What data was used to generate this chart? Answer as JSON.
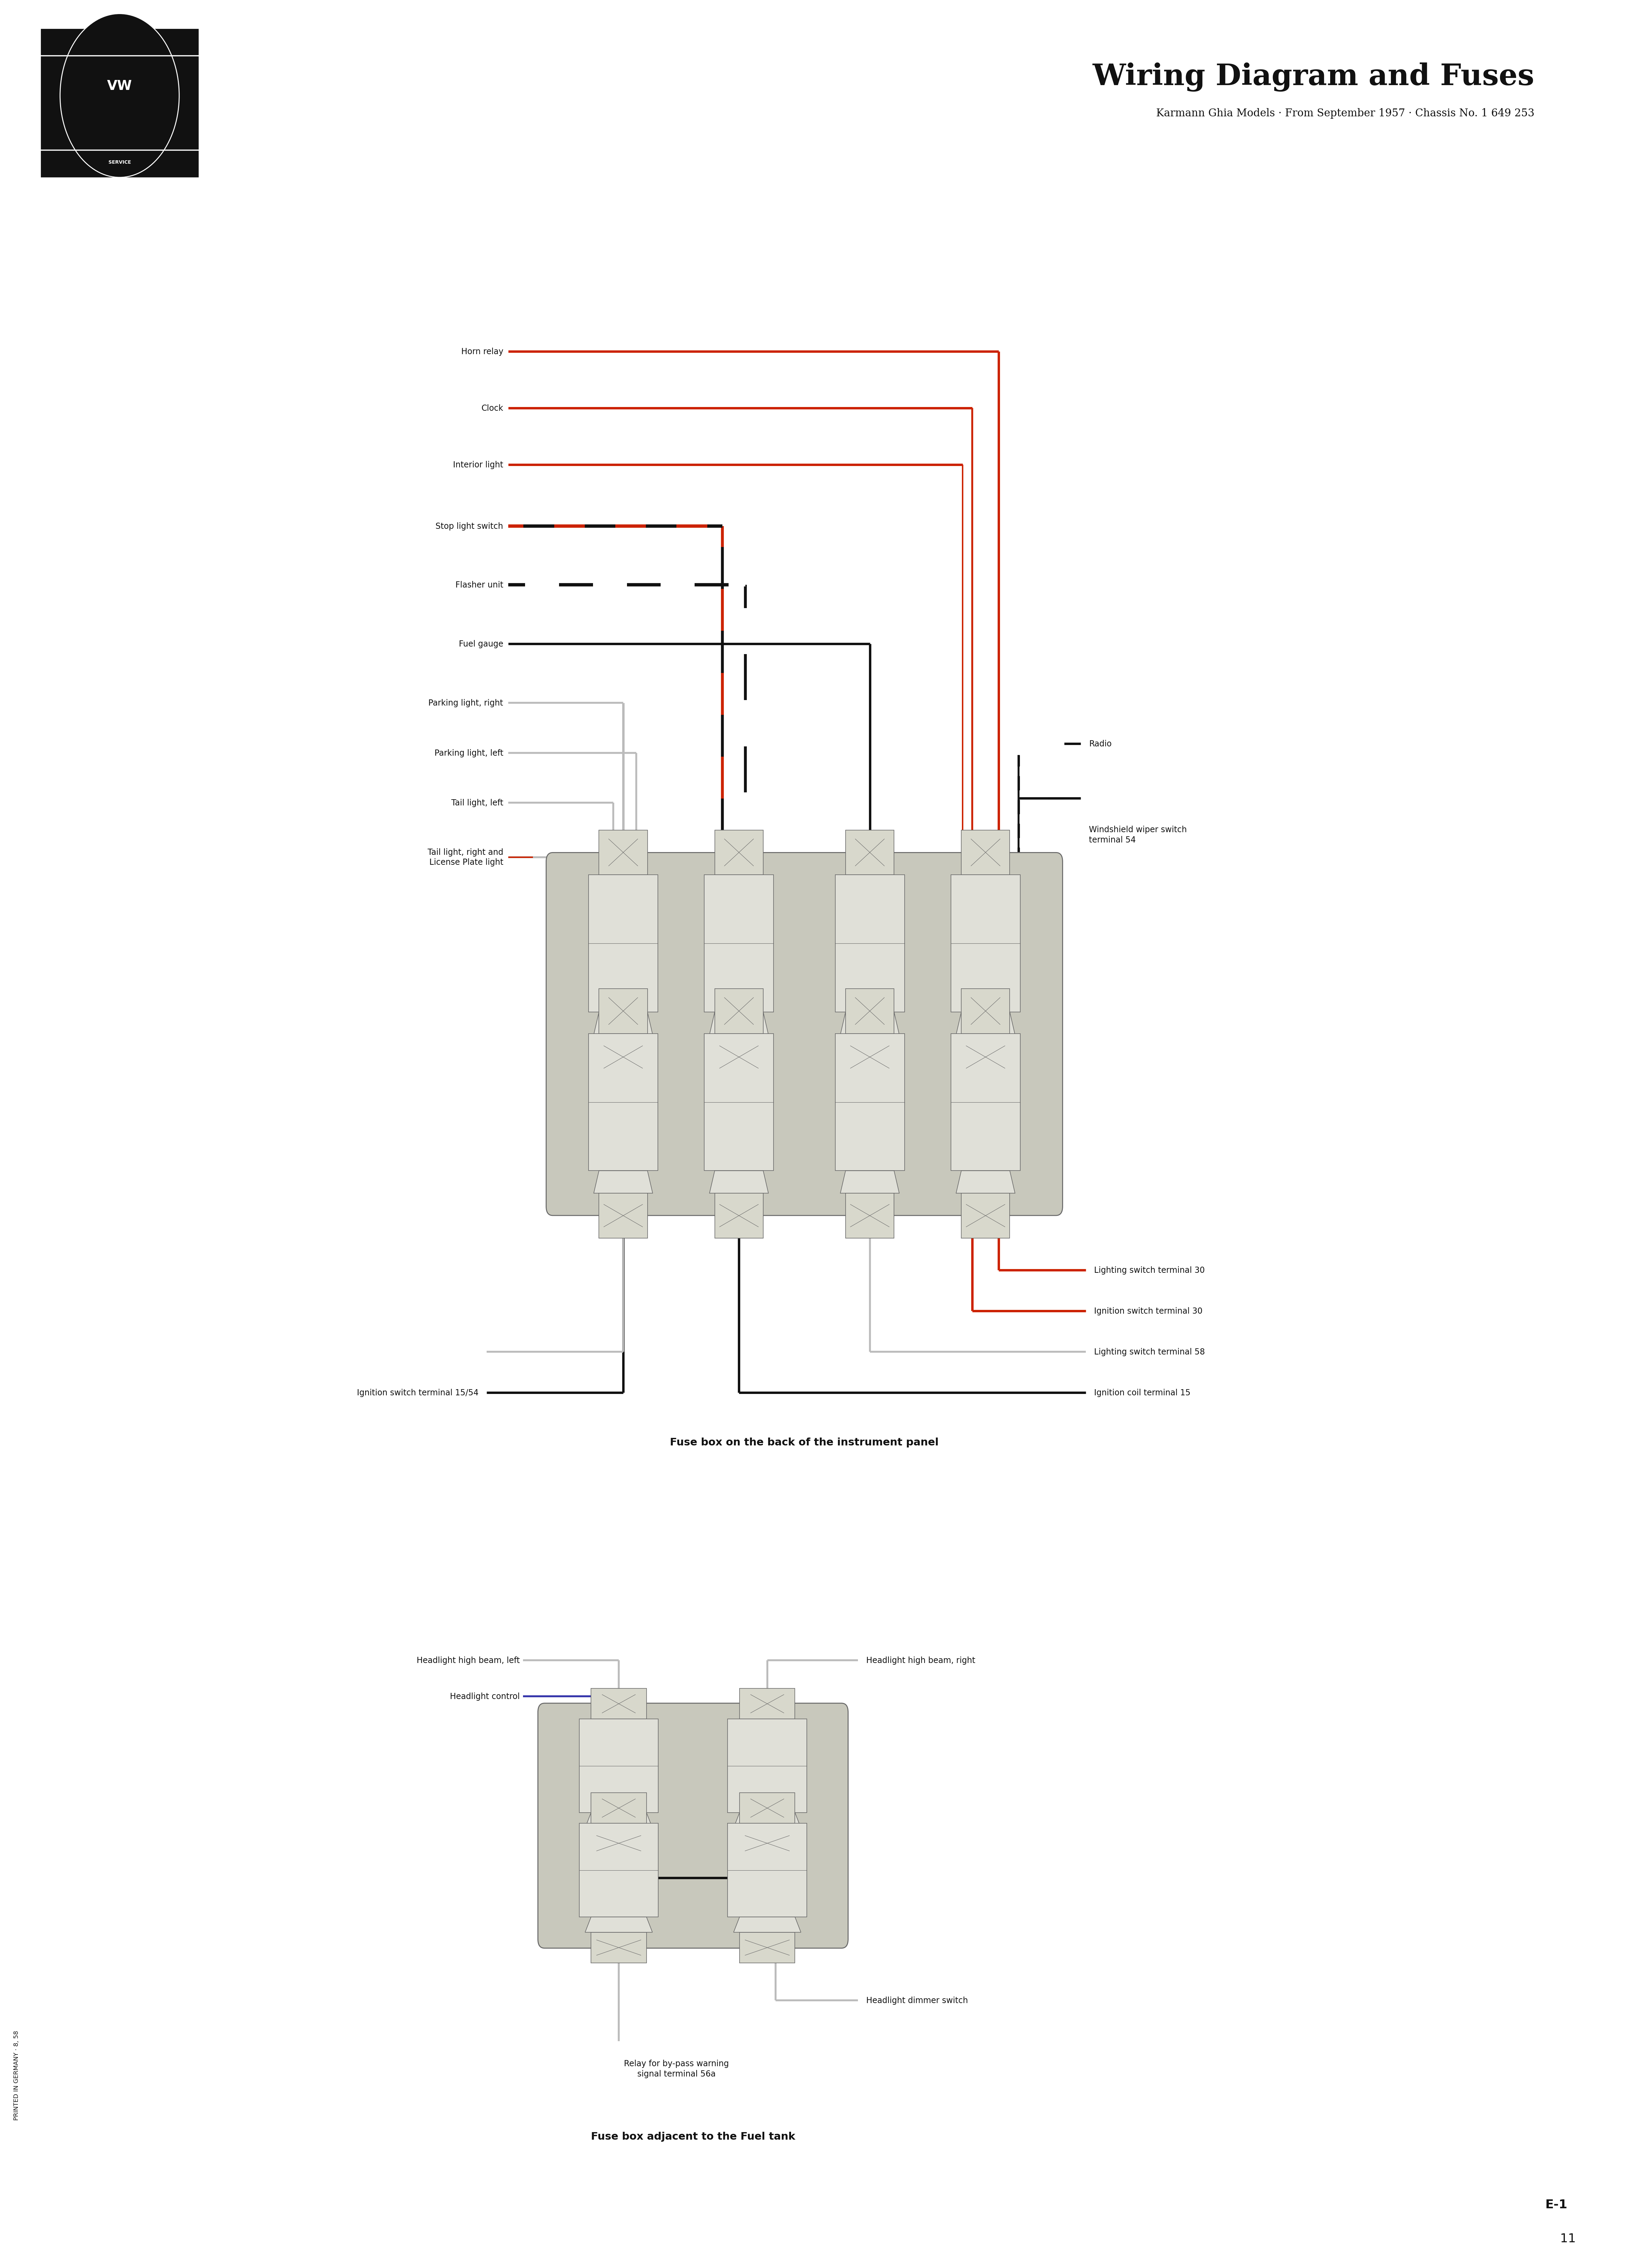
{
  "title": "Wiring Diagram and Fuses",
  "subtitle": "Karmann Ghia Models · From September 1957 · Chassis No. 1 649 253",
  "bg_color": "#ffffff",
  "side_text": "PRINTED IN GERMANY · 8, 58",
  "fuse_box1_label": "Fuse box on the back of the instrument panel",
  "fuse_box2_label": "Fuse box adjacent to the Fuel tank",
  "left_labels_box1": [
    "Horn relay",
    "Clock",
    "Interior light",
    "Stop light switch",
    "Flasher unit",
    "Fuel gauge",
    "Parking light, right",
    "Parking light, left",
    "Tail light, left",
    "Tail light, right and\nLicense Plate light"
  ],
  "right_labels_box1_top": [
    [
      "Radio",
      0
    ],
    [
      "Windshield wiper switch\nterminal 54",
      1
    ]
  ],
  "right_labels_box1_bottom": [
    [
      "Lighting switch terminal 30",
      "red"
    ],
    [
      "Ignition switch terminal 30",
      "red"
    ],
    [
      "Lighting switch terminal 58",
      "gray"
    ],
    [
      "Ignition coil terminal 15",
      "black"
    ]
  ],
  "left_label_bottom_box1": "Ignition switch terminal 15/54",
  "left_labels_box2": [
    "Headlight high beam, left",
    "Headlight control"
  ],
  "right_labels_box2": [
    "Headlight high beam, right",
    "Headlight dimmer switch"
  ],
  "bottom_label_box2": "Relay for by-pass warning\nsignal terminal 56a",
  "colors": {
    "red": "#cc2200",
    "black": "#111111",
    "gray": "#aaaaaa",
    "lgray": "#bbbbbb",
    "fuse_box_bg": "#c8c8bc",
    "fuse_body": "#e0e0d8",
    "fuse_terminal_bg": "#d8d8cc",
    "blue": "#3333aa",
    "white": "#ffffff",
    "dark_gray": "#666666"
  }
}
